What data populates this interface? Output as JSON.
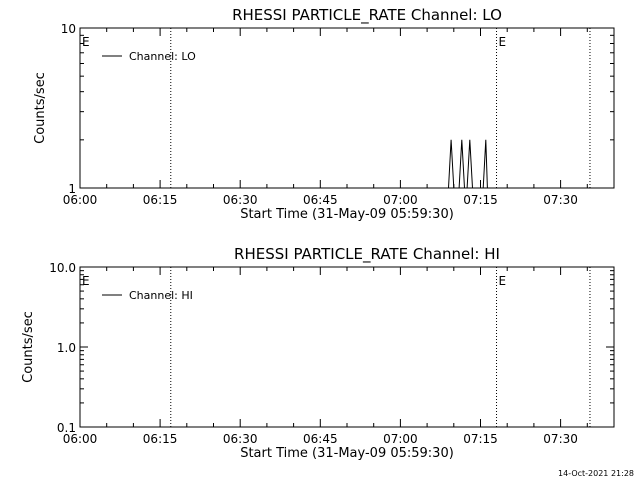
{
  "footer": {
    "timestamp": "14-Oct-2021 21:28"
  },
  "colors": {
    "background": "#ffffff",
    "foreground": "#000000"
  },
  "chart_data": [
    {
      "type": "line",
      "title": "RHESSI PARTICLE_RATE Channel: LO",
      "xlabel": "Start Time (31-May-09 05:59:30)",
      "ylabel": "Counts/sec",
      "y_scale": "log",
      "ylim": [
        1,
        10
      ],
      "yticks": [
        {
          "value": 1,
          "label": "1"
        },
        {
          "value": 10,
          "label": "10"
        }
      ],
      "xlim": [
        "06:00",
        "07:40"
      ],
      "xticks": [
        "06:00",
        "06:15",
        "06:30",
        "06:45",
        "07:00",
        "07:15",
        "07:30"
      ],
      "legend": {
        "position": "top-left",
        "entries": [
          "Channel: LO"
        ]
      },
      "event_markers": [
        {
          "time": "06:17",
          "label": "E"
        },
        {
          "time": "07:18",
          "label": "E"
        },
        {
          "time": "07:35.5",
          "label": ""
        }
      ],
      "series": [
        {
          "name": "Channel: LO",
          "points": [
            [
              "06:00",
              1
            ],
            [
              "07:09",
              1
            ],
            [
              "07:09.5",
              2
            ],
            [
              "07:10",
              1
            ],
            [
              "07:11",
              1
            ],
            [
              "07:11.5",
              2
            ],
            [
              "07:12",
              1
            ],
            [
              "07:12.5",
              1
            ],
            [
              "07:13",
              2
            ],
            [
              "07:13.5",
              1
            ],
            [
              "07:15.5",
              1
            ],
            [
              "07:16",
              2
            ],
            [
              "07:16.3",
              1
            ]
          ]
        }
      ]
    },
    {
      "type": "line",
      "title": "RHESSI PARTICLE_RATE Channel: HI",
      "xlabel": "Start Time (31-May-09 05:59:30)",
      "ylabel": "Counts/sec",
      "y_scale": "log",
      "ylim": [
        0.1,
        10
      ],
      "yticks": [
        {
          "value": 0.1,
          "label": "0.1"
        },
        {
          "value": 1,
          "label": "1.0"
        },
        {
          "value": 10,
          "label": "10.0"
        }
      ],
      "xlim": [
        "06:00",
        "07:40"
      ],
      "xticks": [
        "06:00",
        "06:15",
        "06:30",
        "06:45",
        "07:00",
        "07:15",
        "07:30"
      ],
      "legend": {
        "position": "top-left",
        "entries": [
          "Channel: HI"
        ]
      },
      "event_markers": [
        {
          "time": "06:17",
          "label": "E"
        },
        {
          "time": "07:18",
          "label": "E"
        },
        {
          "time": "07:35.5",
          "label": ""
        }
      ],
      "series": [
        {
          "name": "Channel: HI",
          "points": []
        }
      ]
    }
  ]
}
